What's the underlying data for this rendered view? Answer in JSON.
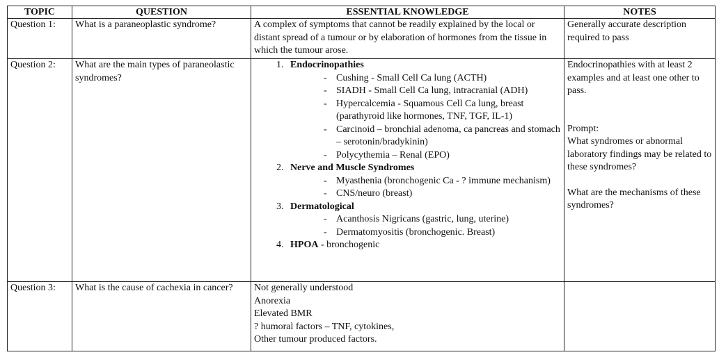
{
  "headers": {
    "topic": "TOPIC",
    "question": "QUESTION",
    "knowledge": "ESSENTIAL KNOWLEDGE",
    "notes": "NOTES"
  },
  "rows": [
    {
      "topic": "Question 1:",
      "question": "What is a paraneoplastic syndrome?",
      "knowledge": "A complex of symptoms that cannot be readily explained by the local or distant spread of a tumour or by elaboration of hormones from the tissue in which the tumour arose.",
      "notes": "Generally accurate description required to pass"
    },
    {
      "topic": "Question 2:",
      "question": "What are the main types of paraneolastic syndromes?",
      "groups": [
        {
          "title": "Endocrinopathies",
          "items": [
            "Cushing - Small Cell Ca lung (ACTH)",
            "SIADH - Small Cell Ca lung, intracranial (ADH)",
            "Hypercalcemia - Squamous Cell Ca lung, breast (parathyroid like hormones, TNF, TGF, IL-1)",
            "Carcinoid – bronchial adenoma, ca pancreas and stomach – serotonin/bradykinin)",
            "Polycythemia – Renal (EPO)"
          ]
        },
        {
          "title": "Nerve and Muscle Syndromes",
          "items": [
            "Myasthenia (bronchogenic Ca - ? immune mechanism)",
            "CNS/neuro (breast)"
          ]
        },
        {
          "title": "Dermatological",
          "items": [
            "Acanthosis Nigricans (gastric, lung, uterine)",
            "Dermatomyositis (bronchogenic. Breast)"
          ]
        },
        {
          "title": "HPOA",
          "suffix": " - bronchogenic",
          "items": []
        }
      ],
      "notes": {
        "pass": "Endocrinopathies with at least 2 examples and at least one other to pass.",
        "prompt_label": "Prompt:",
        "prompt_1": "What syndromes or abnormal laboratory findings may be related to these syndromes?",
        "prompt_2": "What are the mechanisms of these syndromes?"
      }
    },
    {
      "topic": "Question 3:",
      "question": "What is the cause of cachexia in cancer?",
      "knowledge_lines": [
        "Not generally understood",
        "Anorexia",
        "Elevated BMR",
        "? humoral factors – TNF, cytokines,",
        "Other tumour produced factors."
      ],
      "notes": ""
    }
  ]
}
